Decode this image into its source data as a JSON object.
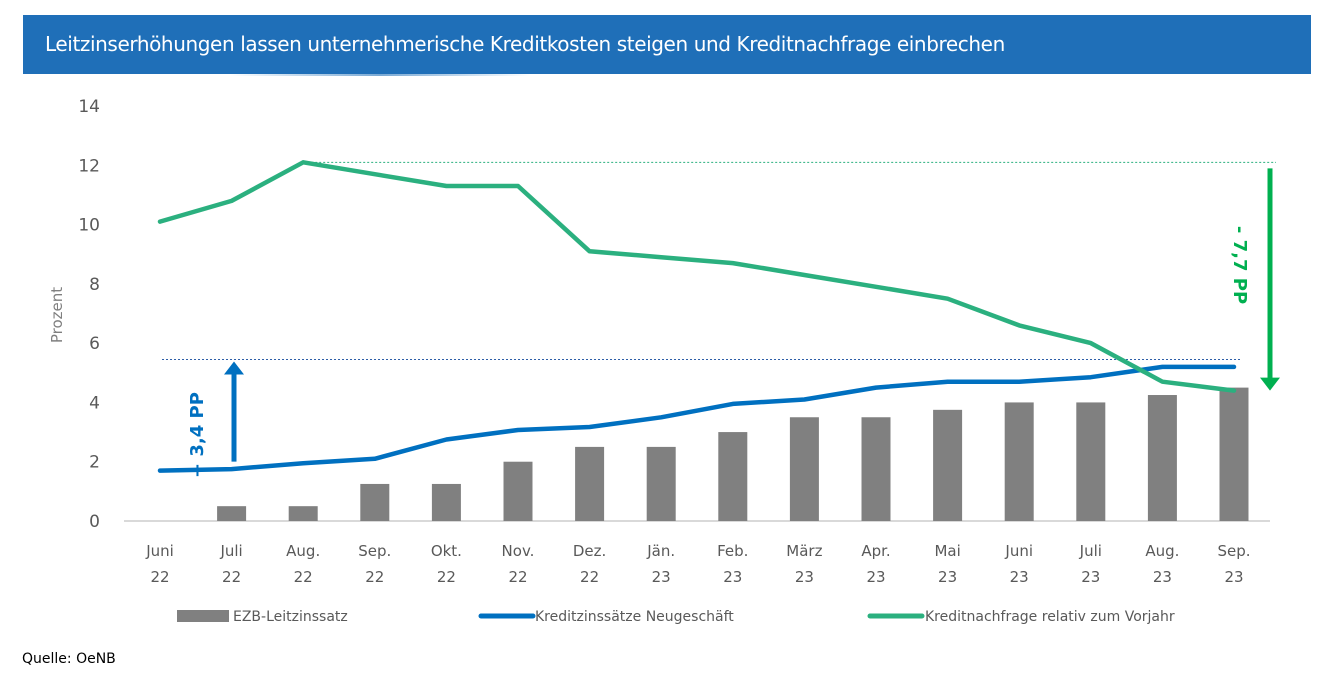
{
  "title": "Leitzinserhöhungen lassen unternehmerische Kreditkosten steigen und Kreditnachfrage einbrechen",
  "source": "Quelle: OeNB",
  "colors": {
    "title_bg": "#1f6fb8",
    "bar": "#808080",
    "blue_line": "#0070c0",
    "green_line": "#2bb07f",
    "green_arrow": "#00b050",
    "axis": "#d9d9d9"
  },
  "chart_data": {
    "type": "bar",
    "title": "Leitzinserhöhungen lassen unternehmerische Kreditkosten steigen und Kreditnachfrage einbrechen",
    "xlabel": "",
    "ylabel": "Prozent",
    "ylim": [
      0,
      14
    ],
    "yticks": [
      "0",
      "2",
      "4",
      "6",
      "8",
      "10",
      "12",
      "14"
    ],
    "grid": false,
    "legend_position": "bottom",
    "categories": [
      [
        "Juni",
        "22"
      ],
      [
        "Juli",
        "22"
      ],
      [
        "Aug.",
        "22"
      ],
      [
        "Sep.",
        "22"
      ],
      [
        "Okt.",
        "22"
      ],
      [
        "Nov.",
        "22"
      ],
      [
        "Dez.",
        "22"
      ],
      [
        "Jän.",
        "23"
      ],
      [
        "Feb.",
        "23"
      ],
      [
        "März",
        "23"
      ],
      [
        "Apr.",
        "23"
      ],
      [
        "Mai",
        "23"
      ],
      [
        "Juni",
        "23"
      ],
      [
        "Juli",
        "23"
      ],
      [
        "Aug.",
        "23"
      ],
      [
        "Sep.",
        "23"
      ]
    ],
    "series": [
      {
        "name": "EZB-Leitzinssatz",
        "type": "bar",
        "values": [
          0,
          0.5,
          0.5,
          1.25,
          1.25,
          2.0,
          2.5,
          2.5,
          3.0,
          3.5,
          3.5,
          3.75,
          4.0,
          4.0,
          4.25,
          4.5
        ]
      },
      {
        "name": "Kreditzinssätze Neugeschäft",
        "type": "line",
        "values": [
          1.7,
          1.75,
          1.95,
          2.1,
          2.75,
          3.07,
          3.17,
          3.5,
          3.95,
          4.1,
          4.5,
          4.7,
          4.7,
          4.85,
          5.2,
          5.2
        ]
      },
      {
        "name": "Kreditnachfrage relativ zum Vorjahr",
        "type": "line",
        "values": [
          10.1,
          10.8,
          12.1,
          11.7,
          11.3,
          11.3,
          9.1,
          8.9,
          8.7,
          8.3,
          7.9,
          7.5,
          6.6,
          6.0,
          4.7,
          4.4
        ]
      }
    ],
    "annotations": [
      {
        "text": "+ 3,4 PP",
        "direction": "up",
        "from": 1.7,
        "to": 5.45,
        "reference_line_value": 5.45,
        "color": "#0070c0"
      },
      {
        "text": "- 7,7 PP",
        "direction": "down",
        "from": 12.1,
        "to": 4.4,
        "reference_line_value": 12.1,
        "color": "#00b050"
      }
    ]
  }
}
